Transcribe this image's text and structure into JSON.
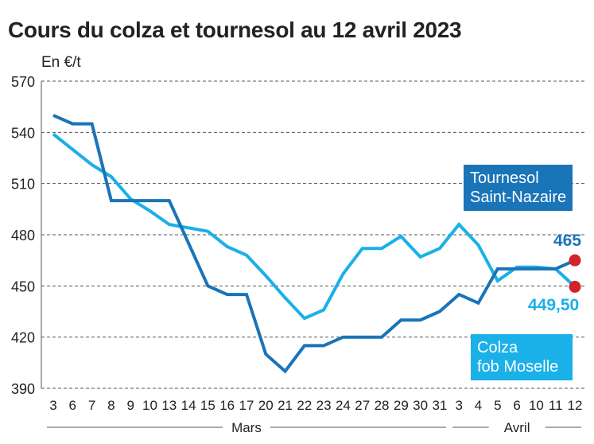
{
  "chart_data": {
    "type": "line",
    "title": "Cours du colza et tournesol au 12 avril 2023",
    "ylabel": "En €/t",
    "ylim": [
      390,
      570
    ],
    "yticks": [
      390,
      420,
      450,
      480,
      510,
      540,
      570
    ],
    "grid": "horizontal dashed",
    "categories": [
      "3",
      "6",
      "7",
      "8",
      "9",
      "10",
      "13",
      "14",
      "15",
      "16",
      "17",
      "20",
      "21",
      "22",
      "23",
      "24",
      "27",
      "28",
      "29",
      "30",
      "31",
      "3",
      "4",
      "5",
      "6",
      "10",
      "11",
      "12"
    ],
    "month_labels": [
      {
        "label": "Mars",
        "from": 0,
        "to": 20
      },
      {
        "label": "Avril",
        "from": 21,
        "to": 27
      }
    ],
    "series": [
      {
        "name": "Tournesol Saint-Nazaire",
        "color": "#1a74b8",
        "values": [
          550,
          545,
          545,
          500,
          500,
          500,
          500,
          475,
          450,
          445,
          445,
          410,
          400,
          415,
          415,
          420,
          420,
          420,
          430,
          430,
          435,
          445,
          440,
          460,
          460,
          460,
          460,
          465
        ],
        "end_label": "465"
      },
      {
        "name": "Colza fob Moselle",
        "color": "#1ab0e8",
        "values": [
          539,
          530,
          521,
          514,
          501,
          494,
          486,
          484,
          482,
          473,
          468,
          456,
          443,
          431,
          436,
          457,
          472,
          472,
          479,
          467,
          472,
          486,
          474,
          453,
          461,
          461,
          460,
          449.5
        ],
        "end_label": "449,50"
      }
    ]
  },
  "labels": {
    "title": "Cours du colza et tournesol au 12 avril 2023",
    "unit": "En €/t",
    "tournesol_box_line1": "Tournesol",
    "tournesol_box_line2": "Saint-Nazaire",
    "colza_box_line1": "Colza",
    "colza_box_line2": "fob Moselle",
    "tournesol_value": "465",
    "colza_value": "449,50"
  },
  "colors": {
    "tournesol": "#1a74b8",
    "colza": "#1ab0e8",
    "endpoint": "#d2232a"
  }
}
